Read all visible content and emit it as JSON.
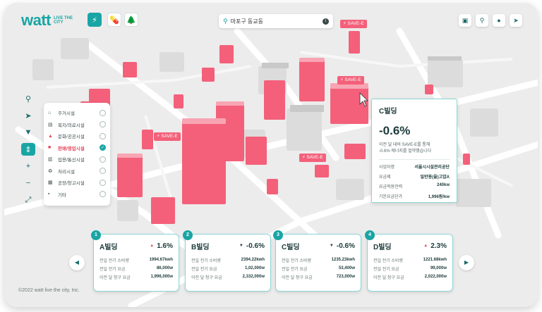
{
  "brand": {
    "logo": "watt",
    "tagline": "LIVE THE CITY",
    "accent": "#1aa5a5",
    "building_color": "#f4607a"
  },
  "modes": [
    {
      "icon": "bolt-icon",
      "active": true
    },
    {
      "icon": "pill-icon",
      "active": false
    },
    {
      "icon": "tree-icon",
      "active": false
    }
  ],
  "search": {
    "location": "마포구 동교동"
  },
  "top_right_icons": [
    "building-icon",
    "location-pin-icon",
    "user-icon",
    "send-icon"
  ],
  "tools": [
    "search-icon",
    "cursor-icon",
    "filter-icon",
    "pan-icon",
    "zoom-in-icon",
    "zoom-out-icon",
    "fullscreen-icon"
  ],
  "legend": [
    {
      "label": "주거시설",
      "checked": false
    },
    {
      "label": "복지/의료시설",
      "checked": false
    },
    {
      "label": "문화/공공시설",
      "checked": false
    },
    {
      "label": "판매/영업시설",
      "checked": true
    },
    {
      "label": "업용/통신시설",
      "checked": false
    },
    {
      "label": "처리시설",
      "checked": false
    },
    {
      "label": "공장/창고시설",
      "checked": false
    },
    {
      "label": "기타",
      "checked": false
    }
  ],
  "map_tags": [
    "SAVE-E",
    "SAVE-E",
    "SAVE-E",
    "SAVE-E"
  ],
  "info_panel": {
    "name": "C빌딩",
    "change": "-0.6%",
    "desc1": "이전 달 대비 SAVE-E를 통해",
    "desc2": "-0.6% 에너지를 절약했습니다",
    "rows": [
      {
        "k": "사업자명",
        "v": "서울시시설관리공단"
      },
      {
        "k": "요금제",
        "v": "일반용(을)고압A"
      },
      {
        "k": "요금적용전력",
        "v": "240kw"
      },
      {
        "k": "기본요금단가",
        "v": "1,996원/kw"
      }
    ]
  },
  "cards": [
    {
      "num": "1",
      "name": "A빌딩",
      "dir": "▲",
      "pct": "1.6%",
      "up": true,
      "rows": [
        {
          "k": "전일 전기 소비량",
          "v": "1994.67kwh"
        },
        {
          "k": "전일 전기 요금",
          "v": "86,000w"
        },
        {
          "k": "이전 달 청구 요금",
          "v": "1,996,000w"
        }
      ]
    },
    {
      "num": "2",
      "name": "B빌딩",
      "dir": "▼",
      "pct": "-0.6%",
      "up": false,
      "rows": [
        {
          "k": "전일 전기 소비량",
          "v": "2394.22kwh"
        },
        {
          "k": "전일 전기 요금",
          "v": "1,02,000w"
        },
        {
          "k": "이전 달 청구 요금",
          "v": "2,332,000w"
        }
      ]
    },
    {
      "num": "3",
      "name": "C빌딩",
      "dir": "▼",
      "pct": "-0.6%",
      "up": false,
      "rows": [
        {
          "k": "전일 전기 소비량",
          "v": "1235.23kwh"
        },
        {
          "k": "전일 전기 요금",
          "v": "53,400w"
        },
        {
          "k": "이전 달 청구 요금",
          "v": "723,000w"
        }
      ]
    },
    {
      "num": "4",
      "name": "D빌딩",
      "dir": "▲",
      "pct": "2.3%",
      "up": true,
      "rows": [
        {
          "k": "전일 전기 소비량",
          "v": "1221.68kwh"
        },
        {
          "k": "전일 전기 요금",
          "v": "99,000w"
        },
        {
          "k": "이전 달 청구 요금",
          "v": "2,022,000w"
        }
      ]
    }
  ],
  "copyright": "©2022 watt live the city, Inc."
}
